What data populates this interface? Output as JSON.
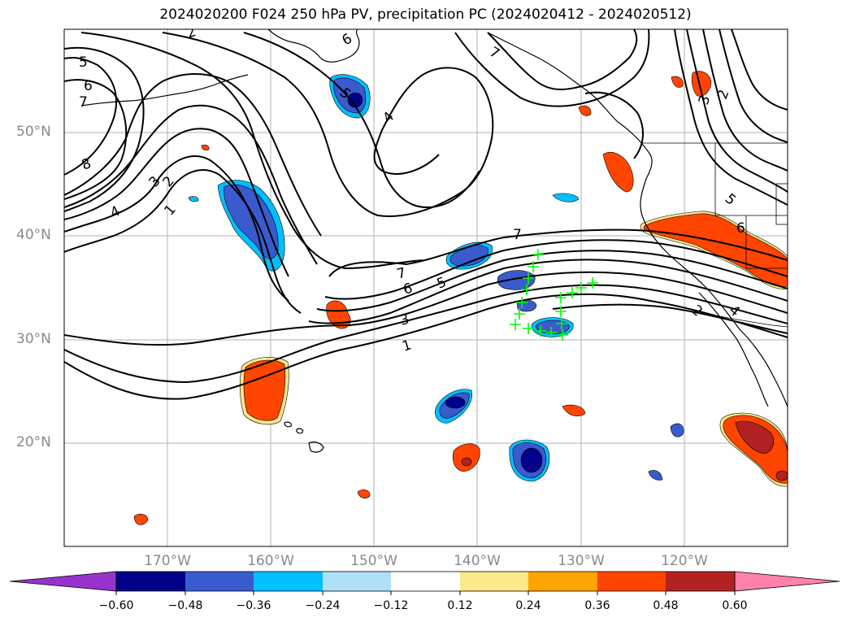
{
  "title": "2024020200 F024 250 hPa PV, precipitation PC (2024020412 - 2024020512)",
  "latitude_labels": [
    "50°N",
    "40°N",
    "30°N",
    "20°N"
  ],
  "longitude_labels": [
    "170°W",
    "160°W",
    "150°W",
    "140°W",
    "130°W",
    "120°W"
  ],
  "contour_labels": [
    "1",
    "2",
    "3",
    "4",
    "5",
    "6",
    "7",
    "8"
  ],
  "colorbar": {
    "ticks": [
      "−0.60",
      "−0.48",
      "−0.36",
      "−0.24",
      "−0.12",
      "0.12",
      "0.24",
      "0.36",
      "0.48",
      "0.60"
    ],
    "colors": [
      "#9932cc",
      "#00008b",
      "#3a5bcd",
      "#00bfff",
      "#b0e0f8",
      "#ffffff",
      "#fde88c",
      "#ffa500",
      "#ff4500",
      "#b22222",
      "#ff82ab"
    ]
  },
  "colors": {
    "coastline": "#000000",
    "gridline": "#b0b0b0",
    "marker": "#00ff00"
  }
}
